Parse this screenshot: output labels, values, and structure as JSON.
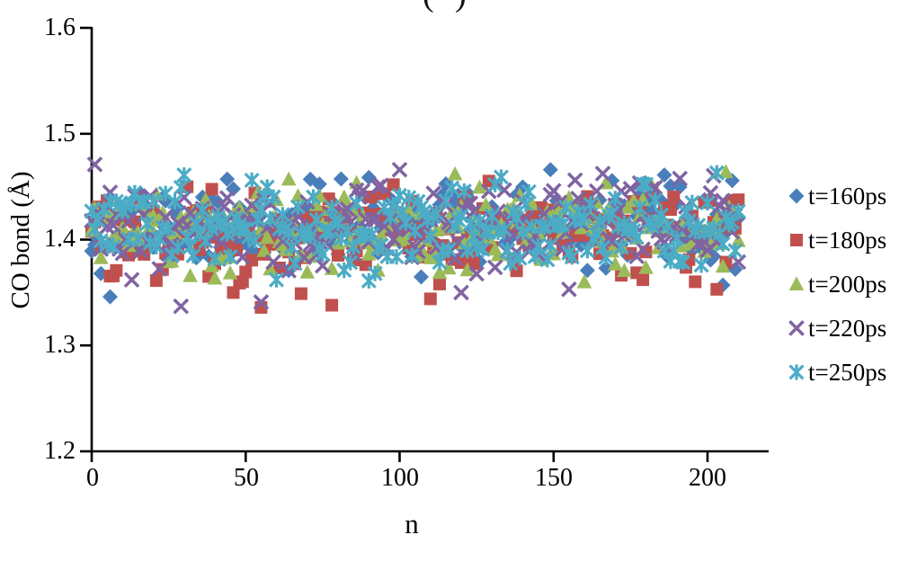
{
  "figure": {
    "label_partial": "( )"
  },
  "axes": {
    "x_label": "n",
    "y_label": "CO bond (Å)",
    "x_tick_labels": [
      "0",
      "50",
      "100",
      "150",
      "200"
    ],
    "y_tick_labels_top_to_bottom": [
      "1.6",
      "1.5",
      "1.4",
      "1.3",
      "1.2"
    ]
  },
  "chart_data": {
    "type": "scatter",
    "title": "",
    "xlabel": "n",
    "ylabel": "CO bond (Å)",
    "xlim": [
      0,
      220
    ],
    "ylim": [
      1.2,
      1.6
    ],
    "xticks": [
      0,
      50,
      100,
      150,
      200
    ],
    "yticks": [
      1.2,
      1.3,
      1.4,
      1.5,
      1.6
    ],
    "grid": false,
    "legend_position": "right",
    "marker_size_px": 16,
    "axis_color": "#000000",
    "series": [
      {
        "name": "t=160ps",
        "marker": "diamond",
        "color": "#4a7ebb",
        "seed": 11,
        "x_start": 0,
        "x_end": 210,
        "x_step": 1,
        "y_mean": 1.412,
        "y_std": 0.02,
        "y_clamp": [
          1.363,
          1.462
        ],
        "outliers": [
          [
            6,
            1.346
          ],
          [
            71,
            1.457
          ],
          [
            149,
            1.466
          ],
          [
            205,
            1.357
          ]
        ]
      },
      {
        "name": "t=180ps",
        "marker": "square",
        "color": "#c0504d",
        "seed": 22,
        "x_start": 0,
        "x_end": 210,
        "x_step": 1,
        "y_mean": 1.406,
        "y_std": 0.022,
        "y_clamp": [
          1.358,
          1.457
        ],
        "outliers": [
          [
            46,
            1.35
          ],
          [
            55,
            1.336
          ],
          [
            68,
            1.349
          ],
          [
            78,
            1.338
          ],
          [
            110,
            1.344
          ],
          [
            203,
            1.353
          ]
        ]
      },
      {
        "name": "t=200ps",
        "marker": "triangle",
        "color": "#9bbb59",
        "seed": 33,
        "x_start": 0,
        "x_end": 210,
        "x_step": 1,
        "y_mean": 1.41,
        "y_std": 0.02,
        "y_clamp": [
          1.362,
          1.458
        ],
        "outliers": [
          [
            64,
            1.457
          ],
          [
            118,
            1.462
          ],
          [
            160,
            1.36
          ],
          [
            206,
            1.464
          ]
        ]
      },
      {
        "name": "t=220ps",
        "marker": "x",
        "color": "#8064a2",
        "seed": 44,
        "x_start": 0,
        "x_end": 210,
        "x_step": 1,
        "y_mean": 1.411,
        "y_std": 0.021,
        "y_clamp": [
          1.361,
          1.464
        ],
        "outliers": [
          [
            1,
            1.471
          ],
          [
            13,
            1.362
          ],
          [
            29,
            1.337
          ],
          [
            55,
            1.341
          ],
          [
            100,
            1.466
          ],
          [
            120,
            1.35
          ],
          [
            155,
            1.353
          ]
        ]
      },
      {
        "name": "t=250ps",
        "marker": "asterisk",
        "color": "#4bacc6",
        "seed": 55,
        "x_start": 0,
        "x_end": 210,
        "x_step": 1,
        "y_mean": 1.41,
        "y_std": 0.019,
        "y_clamp": [
          1.365,
          1.46
        ],
        "outliers": [
          [
            30,
            1.461
          ],
          [
            60,
            1.362
          ],
          [
            90,
            1.361
          ],
          [
            133,
            1.459
          ],
          [
            203,
            1.463
          ]
        ]
      }
    ]
  }
}
